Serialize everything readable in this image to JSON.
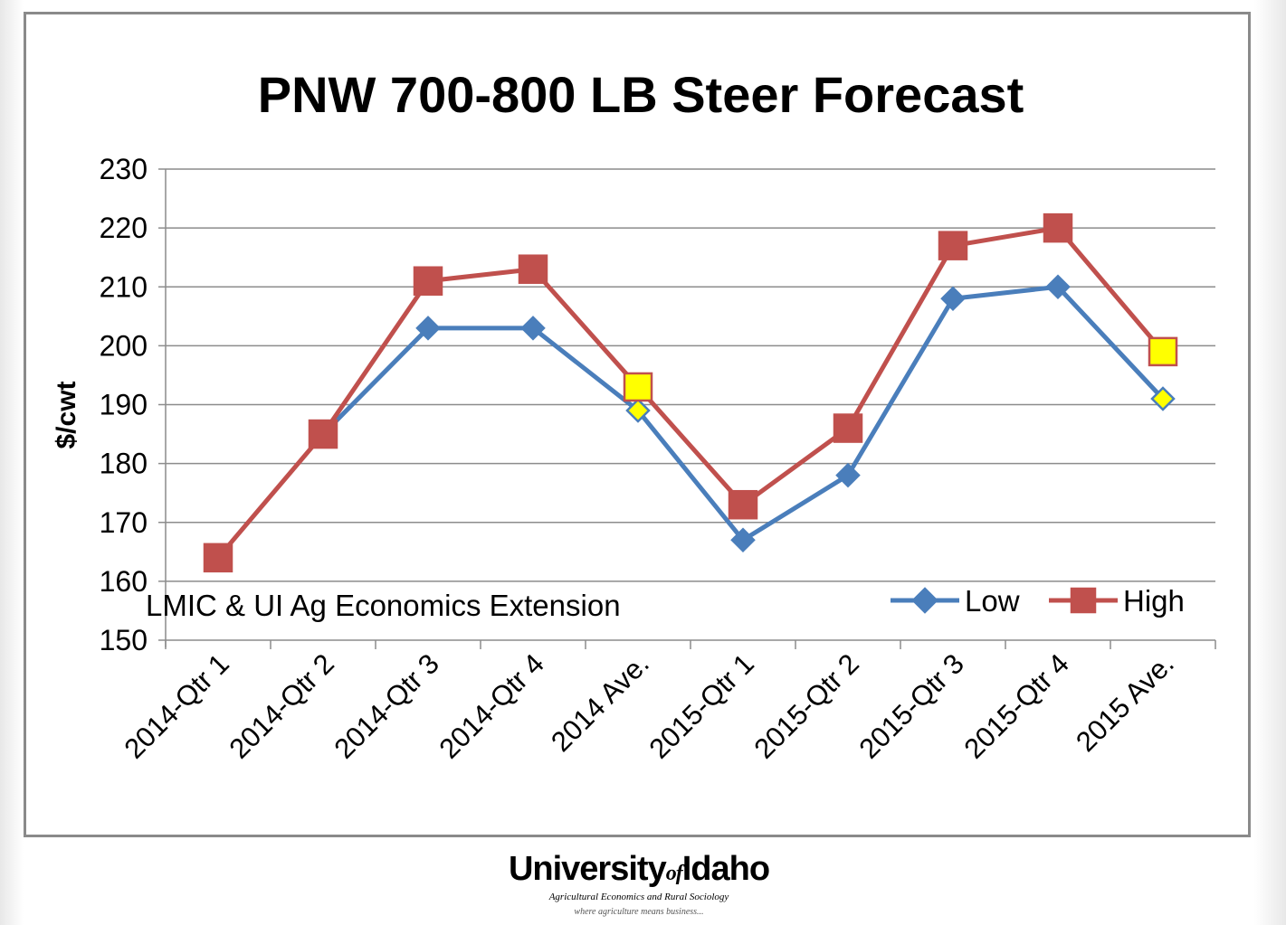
{
  "chart_data": {
    "type": "line",
    "title": "PNW 700-800 LB Steer Forecast",
    "ylabel": "$/cwt",
    "xlabel": "",
    "ylim": [
      150,
      230
    ],
    "yticks": [
      150,
      160,
      170,
      180,
      190,
      200,
      210,
      220,
      230
    ],
    "grid": true,
    "legend": "bottom-right",
    "annotation": "LMIC & UI Ag Economics Extension",
    "categories": [
      "2014-Qtr 1",
      "2014-Qtr 2",
      "2014-Qtr 3",
      "2014-Qtr 4",
      "2014 Ave.",
      "2015-Qtr 1",
      "2015-Qtr 2",
      "2015-Qtr 3",
      "2015-Qtr 4",
      "2015 Ave."
    ],
    "highlight_categories": [
      "2014 Ave.",
      "2015 Ave."
    ],
    "series": [
      {
        "name": "Low",
        "color": "#4a7ebb",
        "marker": "diamond",
        "values": [
          null,
          185,
          203,
          203,
          189,
          167,
          178,
          208,
          210,
          191
        ]
      },
      {
        "name": "High",
        "color": "#c0504d",
        "marker": "square",
        "values": [
          164,
          185,
          211,
          213,
          193,
          173,
          186,
          217,
          220,
          199
        ]
      }
    ],
    "highlight_color": "#ffff00"
  },
  "footer": {
    "university_pre": "University",
    "university_of": "of",
    "university_post": "Idaho",
    "department": "Agricultural Economics and Rural Sociology",
    "tagline": "where agriculture means business..."
  }
}
